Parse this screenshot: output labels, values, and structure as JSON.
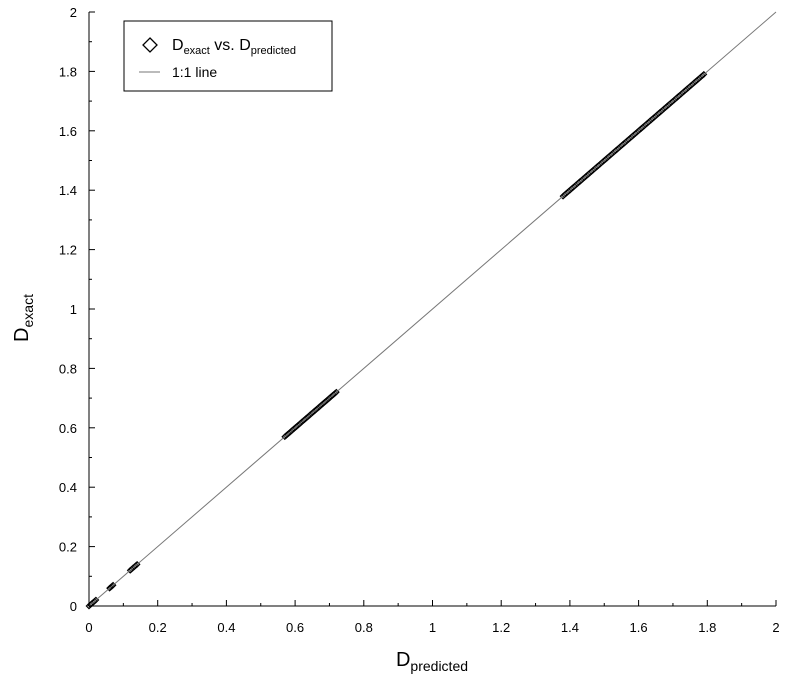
{
  "chart_data": {
    "type": "scatter",
    "title": "",
    "xlabel": {
      "main": "D",
      "sub": "predicted"
    },
    "ylabel": {
      "main": "D",
      "sub": "exact"
    },
    "xlim": [
      0,
      2
    ],
    "ylim": [
      0,
      2
    ],
    "x_ticks": [
      "0",
      "0.2",
      "0.4",
      "0.6",
      "0.8",
      "1",
      "1.2",
      "1.4",
      "1.6",
      "1.8",
      "2"
    ],
    "y_ticks": [
      "0",
      "0.2",
      "0.4",
      "0.6",
      "0.8",
      "1",
      "1.2",
      "1.4",
      "1.6",
      "1.8",
      "2"
    ],
    "grid": false,
    "legend": {
      "position": "top-left",
      "entries": [
        {
          "marker": "diamond-open",
          "main": "D",
          "sub": "exact",
          "mid": " vs. D",
          "sub2": "predicted"
        },
        {
          "marker": "line",
          "label": "1:1 line"
        }
      ]
    },
    "series": [
      {
        "kind": "scatter",
        "marker": "diamond-open",
        "color": "#000000",
        "clusters": [
          {
            "start": 0.0,
            "end": 0.02,
            "n": 6
          },
          {
            "start": 0.06,
            "end": 0.07,
            "n": 4
          },
          {
            "start": 0.12,
            "end": 0.14,
            "n": 6
          },
          {
            "start": 0.57,
            "end": 0.72,
            "n": 40
          },
          {
            "start": 1.38,
            "end": 1.79,
            "n": 100
          }
        ]
      },
      {
        "kind": "line",
        "color": "#777777",
        "points": [
          [
            0,
            0
          ],
          [
            2,
            2
          ]
        ]
      }
    ]
  }
}
